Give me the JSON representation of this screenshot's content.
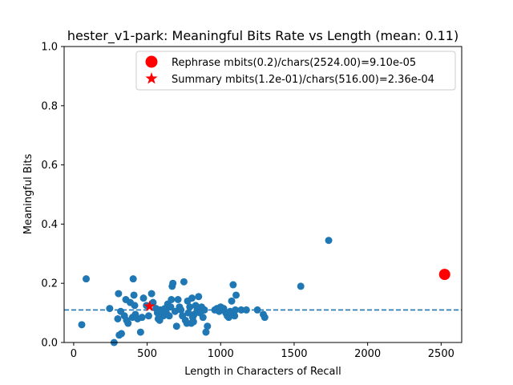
{
  "chart_data": {
    "type": "scatter",
    "title": "hester_v1-park: Meaningful Bits Rate vs Length (mean: 0.11)",
    "xlabel": "Length in Characters of Recall",
    "ylabel": "Meaningful Bits",
    "xlim": [
      -65,
      2640
    ],
    "ylim": [
      0.0,
      1.0
    ],
    "xticks": [
      0,
      500,
      1000,
      1500,
      2000,
      2500
    ],
    "yticks": [
      0.0,
      0.2,
      0.4,
      0.6,
      0.8,
      1.0
    ],
    "xtick_labels": [
      "0",
      "500",
      "1000",
      "1500",
      "2000",
      "2500"
    ],
    "ytick_labels": [
      "0.0",
      "0.2",
      "0.4",
      "0.6",
      "0.8",
      "1.0"
    ],
    "mean_line": 0.11,
    "legend_position": "top-right",
    "colors": {
      "points": "#1f77b4",
      "highlight": "#ff0000",
      "mean_line": "#1f77b4"
    },
    "series": [
      {
        "marker": "circle",
        "points": [
          [
            55,
            0.06
          ],
          [
            85,
            0.215
          ],
          [
            245,
            0.115
          ],
          [
            275,
            0.0
          ],
          [
            300,
            0.08
          ],
          [
            305,
            0.165
          ],
          [
            310,
            0.025
          ],
          [
            320,
            0.105
          ],
          [
            325,
            0.03
          ],
          [
            345,
            0.09
          ],
          [
            355,
            0.145
          ],
          [
            360,
            0.075
          ],
          [
            370,
            0.065
          ],
          [
            385,
            0.135
          ],
          [
            400,
            0.085
          ],
          [
            405,
            0.215
          ],
          [
            410,
            0.16
          ],
          [
            415,
            0.125
          ],
          [
            420,
            0.095
          ],
          [
            435,
            0.08
          ],
          [
            455,
            0.035
          ],
          [
            465,
            0.085
          ],
          [
            475,
            0.15
          ],
          [
            495,
            0.125
          ],
          [
            510,
            0.09
          ],
          [
            530,
            0.165
          ],
          [
            540,
            0.135
          ],
          [
            560,
            0.115
          ],
          [
            570,
            0.1
          ],
          [
            575,
            0.08
          ],
          [
            585,
            0.075
          ],
          [
            590,
            0.11
          ],
          [
            600,
            0.105
          ],
          [
            610,
            0.09
          ],
          [
            620,
            0.115
          ],
          [
            630,
            0.1
          ],
          [
            640,
            0.13
          ],
          [
            650,
            0.09
          ],
          [
            660,
            0.12
          ],
          [
            665,
            0.145
          ],
          [
            670,
            0.19
          ],
          [
            675,
            0.2
          ],
          [
            690,
            0.105
          ],
          [
            700,
            0.055
          ],
          [
            710,
            0.145
          ],
          [
            720,
            0.12
          ],
          [
            730,
            0.11
          ],
          [
            740,
            0.09
          ],
          [
            750,
            0.205
          ],
          [
            760,
            0.075
          ],
          [
            770,
            0.065
          ],
          [
            775,
            0.14
          ],
          [
            780,
            0.1
          ],
          [
            790,
            0.12
          ],
          [
            800,
            0.065
          ],
          [
            805,
            0.15
          ],
          [
            810,
            0.085
          ],
          [
            815,
            0.07
          ],
          [
            820,
            0.095
          ],
          [
            830,
            0.125
          ],
          [
            840,
            0.11
          ],
          [
            850,
            0.155
          ],
          [
            860,
            0.1
          ],
          [
            870,
            0.12
          ],
          [
            880,
            0.085
          ],
          [
            890,
            0.11
          ],
          [
            900,
            0.035
          ],
          [
            910,
            0.055
          ],
          [
            960,
            0.11
          ],
          [
            975,
            0.115
          ],
          [
            990,
            0.105
          ],
          [
            1000,
            0.12
          ],
          [
            1020,
            0.115
          ],
          [
            1035,
            0.1
          ],
          [
            1045,
            0.09
          ],
          [
            1055,
            0.085
          ],
          [
            1065,
            0.105
          ],
          [
            1075,
            0.14
          ],
          [
            1085,
            0.195
          ],
          [
            1095,
            0.09
          ],
          [
            1100,
            0.11
          ],
          [
            1105,
            0.16
          ],
          [
            1140,
            0.11
          ],
          [
            1175,
            0.11
          ],
          [
            1250,
            0.11
          ],
          [
            1290,
            0.095
          ],
          [
            1300,
            0.085
          ],
          [
            1545,
            0.19
          ],
          [
            1735,
            0.345
          ]
        ]
      },
      {
        "label": "Rephrase mbits(0.2)/chars(2524.00)=9.10e-05",
        "marker": "big-circle",
        "points": [
          [
            2524,
            0.23
          ]
        ]
      },
      {
        "label": "Summary mbits(1.2e-01)/chars(516.00)=2.36e-04",
        "marker": "star",
        "points": [
          [
            516,
            0.122
          ]
        ]
      }
    ]
  }
}
